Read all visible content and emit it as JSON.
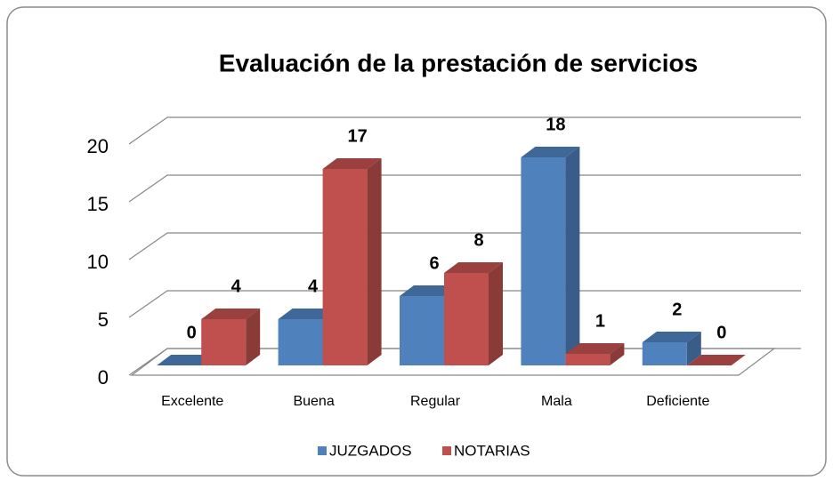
{
  "chart_data": {
    "type": "bar3d",
    "title": "Evaluación de la prestación de servicios",
    "categories": [
      "Excelente",
      "Buena",
      "Regular",
      "Mala",
      "Deficiente"
    ],
    "series": [
      {
        "name": "JUZGADOS",
        "color": "#4f81bd",
        "values": [
          0,
          4,
          6,
          18,
          2
        ]
      },
      {
        "name": "NOTARIAS",
        "color": "#c0504d",
        "values": [
          4,
          17,
          8,
          1,
          0
        ]
      }
    ],
    "ylim": [
      0,
      20
    ],
    "yticks": [
      0,
      5,
      10,
      15,
      20
    ],
    "grid": true,
    "legend": "bottom"
  }
}
